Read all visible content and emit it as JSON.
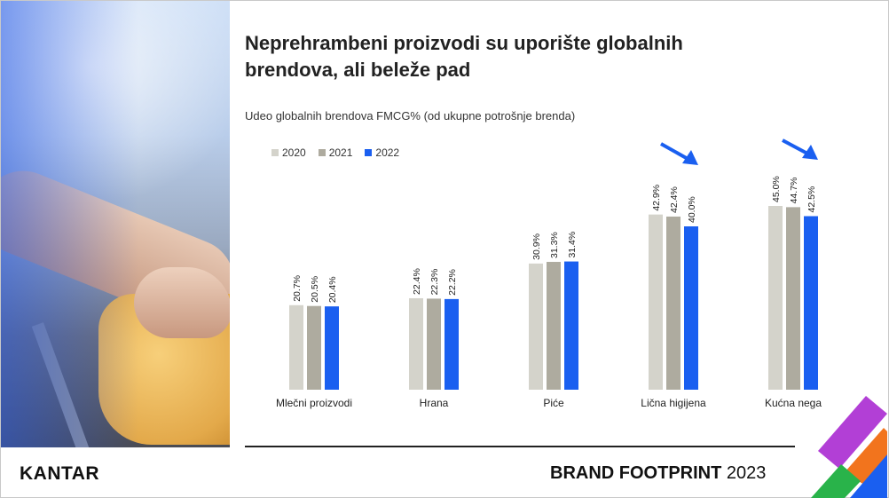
{
  "title": "Neprehrambeni proizvodi su uporište globalnih brendova, ali beleže pad",
  "subtitle": "Udeo globalnih brendova FMCG% (od ukupne potrošnje brenda)",
  "footer": {
    "logo": "KANTAR",
    "brand_bold": "BRAND FOOTPRINT",
    "brand_year": "2023"
  },
  "colors": {
    "s2020": "#d4d3cb",
    "s2021": "#aeab9f",
    "s2022": "#1a5ff0",
    "arrow": "#1a5ff0"
  },
  "chart_data": {
    "type": "bar",
    "categories": [
      "Mlečni proizvodi",
      "Hrana",
      "Piće",
      "Lična higijena",
      "Kućna nega"
    ],
    "series": [
      {
        "name": "2020",
        "values": [
          20.7,
          22.4,
          30.9,
          42.9,
          45.0
        ],
        "labels": [
          "20.7%",
          "22.4%",
          "30.9%",
          "42.9%",
          "45.0%"
        ]
      },
      {
        "name": "2021",
        "values": [
          20.5,
          22.3,
          31.3,
          42.4,
          44.7
        ],
        "labels": [
          "20.5%",
          "22.3%",
          "31.3%",
          "42.4%",
          "44.7%"
        ]
      },
      {
        "name": "2022",
        "values": [
          20.4,
          22.2,
          31.4,
          40.0,
          42.5
        ],
        "labels": [
          "20.4%",
          "22.2%",
          "31.4%",
          "40.0%",
          "42.5%"
        ]
      }
    ],
    "ylim": [
      0,
      100
    ],
    "legend_position": "top-left",
    "grid": false,
    "annotations": [
      "down-arrow over Lična higijena",
      "down-arrow over Kućna nega"
    ]
  }
}
